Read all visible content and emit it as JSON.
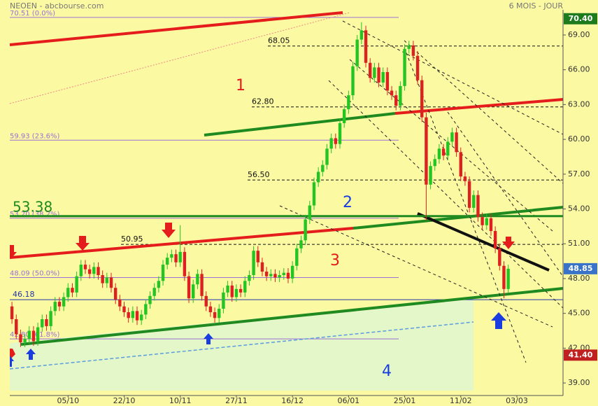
{
  "chart_data": {
    "type": "candlestick",
    "title": "NEOEN - abcbourse.com",
    "subtitle": "6 MOIS - JOUR",
    "open": [
      45.6,
      44.5,
      43.2,
      42.5,
      42.8,
      43.5,
      42.6,
      43.8,
      44.5,
      43.9,
      45.2,
      46,
      45.6,
      46.4,
      47.2,
      46.8,
      48.2,
      49.2,
      48.8,
      48.4,
      49,
      48.3,
      47.6,
      48.1,
      47.2,
      46.2,
      45.6,
      45.1,
      44.6,
      45.2,
      44.4,
      44.9,
      45.8,
      46.5,
      47.2,
      47.8,
      49.2,
      49.8,
      50.1,
      49.4,
      50.3,
      48.2,
      46.3,
      47.5,
      48.4,
      46.5,
      45.6,
      45.1,
      44.6,
      45.4,
      46.8,
      47.4,
      46.4,
      47.1,
      46.8,
      47.8,
      48.3,
      50.4,
      49.4,
      48.6,
      48.2,
      48.4,
      48.1,
      48.3,
      48.5,
      48,
      49.1,
      50.6,
      51.3,
      53.1,
      54.3,
      56.3,
      57.2,
      57.8,
      59.2,
      60.1,
      59.6,
      61.4,
      62.6,
      63.8,
      66.3,
      68.6,
      69.4,
      66.6,
      65.3,
      66.2,
      64.9,
      65.8,
      64.2,
      63.8,
      62.9,
      64.6,
      67.8,
      68.1,
      67.2,
      65.1,
      61.9,
      56.1,
      57.7,
      58.3,
      59.2,
      58.6,
      59.8,
      60.6,
      58.9,
      56.8,
      56.4,
      54.1,
      55.2,
      53.3,
      52.6,
      53.2,
      52.1,
      50.6,
      49.1,
      47.1
    ],
    "high": [
      46.0,
      44.9,
      43.6,
      43.2,
      43.9,
      43.9,
      44.2,
      44.9,
      44.9,
      45.6,
      46.4,
      46.4,
      46.8,
      47.6,
      47.6,
      48.6,
      49.6,
      49.6,
      49.2,
      49.4,
      49.4,
      48.7,
      48.5,
      48.5,
      47.6,
      46.6,
      46.0,
      45.5,
      45.6,
      45.6,
      45.3,
      46.2,
      46.9,
      47.6,
      48.2,
      49.6,
      50.2,
      50.5,
      50.5,
      52.6,
      50.7,
      48.6,
      47.9,
      48.8,
      48.8,
      46.9,
      46.0,
      45.5,
      45.8,
      47.2,
      47.8,
      47.8,
      47.5,
      47.5,
      48.2,
      48.7,
      50.8,
      50.8,
      49.8,
      49.0,
      48.8,
      48.8,
      48.7,
      48.9,
      48.9,
      49.5,
      51.0,
      51.7,
      53.5,
      54.7,
      56.7,
      57.6,
      58.2,
      59.6,
      60.5,
      60.5,
      61.8,
      63.0,
      64.2,
      66.7,
      69.0,
      70.1,
      69.8,
      67.0,
      66.6,
      66.6,
      66.2,
      66.2,
      64.6,
      64.2,
      65.0,
      68.2,
      68.5,
      68.5,
      67.6,
      65.5,
      62.3,
      58.1,
      58.7,
      59.6,
      59.6,
      60.2,
      61.0,
      61.0,
      59.3,
      57.2,
      56.8,
      55.6,
      55.6,
      53.7,
      53.6,
      53.6,
      52.5,
      51.0,
      49.5,
      49.2
    ],
    "low": [
      44.1,
      42.8,
      42.1,
      42.1,
      42.4,
      42.2,
      42.2,
      43.4,
      43.5,
      43.5,
      44.8,
      45.2,
      45.2,
      46.0,
      46.4,
      46.4,
      47.8,
      48.4,
      48.0,
      48.0,
      47.9,
      47.2,
      47.2,
      46.8,
      45.8,
      45.2,
      44.7,
      44.2,
      44.2,
      44.0,
      44.0,
      44.5,
      45.4,
      46.1,
      46.8,
      47.4,
      48.8,
      49.4,
      49.0,
      49.0,
      47.8,
      45.9,
      45.9,
      47.1,
      46.1,
      45.2,
      44.7,
      44.2,
      44.2,
      45.0,
      46.4,
      46.0,
      46.0,
      46.4,
      46.4,
      47.4,
      47.9,
      49.0,
      48.2,
      47.8,
      47.8,
      47.7,
      47.7,
      47.9,
      47.6,
      47.6,
      48.7,
      50.2,
      50.9,
      52.7,
      53.9,
      55.9,
      56.8,
      57.4,
      58.8,
      59.2,
      59.2,
      61.0,
      62.2,
      63.4,
      65.9,
      68.2,
      66.2,
      64.9,
      64.9,
      64.5,
      64.5,
      63.8,
      63.4,
      62.5,
      62.5,
      64.2,
      67.4,
      66.8,
      64.7,
      61.5,
      53.0,
      55.7,
      57.3,
      57.9,
      58.2,
      58.2,
      59.4,
      58.5,
      56.4,
      56.0,
      53.7,
      53.7,
      52.9,
      52.2,
      52.2,
      51.7,
      50.2,
      48.7,
      46.3,
      46.8
    ],
    "close": [
      44.5,
      43.2,
      42.5,
      42.8,
      43.5,
      42.6,
      43.8,
      44.5,
      43.9,
      45.2,
      46,
      45.6,
      46.4,
      47.2,
      46.8,
      48.2,
      49.2,
      48.8,
      48.4,
      49,
      48.3,
      47.6,
      48.1,
      47.2,
      46.2,
      45.6,
      45.1,
      44.6,
      45.2,
      44.4,
      44.9,
      45.8,
      46.5,
      47.2,
      47.8,
      49.2,
      49.8,
      50.1,
      49.4,
      50.3,
      48.2,
      46.3,
      47.5,
      48.4,
      46.5,
      45.6,
      45.1,
      44.6,
      45.4,
      46.8,
      47.4,
      46.4,
      47.1,
      46.8,
      47.8,
      48.3,
      50.4,
      49.4,
      48.6,
      48.2,
      48.4,
      48.1,
      48.3,
      48.5,
      48,
      49.1,
      50.6,
      51.3,
      53.1,
      54.3,
      56.3,
      57.2,
      57.8,
      59.2,
      60.1,
      59.6,
      61.4,
      62.6,
      63.8,
      66.3,
      68.6,
      69.4,
      66.6,
      65.3,
      66.2,
      64.9,
      65.8,
      64.2,
      63.8,
      62.9,
      64.6,
      67.8,
      68.1,
      67.2,
      65.1,
      61.9,
      56.1,
      57.7,
      58.3,
      59.2,
      58.6,
      59.8,
      60.6,
      58.9,
      56.8,
      56.4,
      54.1,
      55.2,
      53.3,
      52.6,
      53.2,
      52.1,
      50.6,
      49.1,
      47.1,
      48.85
    ],
    "up_color": "#22c522",
    "down_color": "#dd2020",
    "xlim": [
      -0.5,
      127.7
    ],
    "xticks": [
      {
        "value": 13,
        "label": "05/10"
      },
      {
        "value": 26,
        "label": "22/10"
      },
      {
        "value": 39,
        "label": "10/11"
      },
      {
        "value": 52,
        "label": "27/11"
      },
      {
        "value": 65,
        "label": "16/12"
      },
      {
        "value": 78,
        "label": "06/01"
      },
      {
        "value": 91,
        "label": "25/01"
      },
      {
        "value": 104,
        "label": "11/02"
      },
      {
        "value": 117,
        "label": "03/03"
      }
    ],
    "ylim": [
      37.92,
      71.17
    ],
    "yticks": [
      {
        "value": 39,
        "label": "39.00"
      },
      {
        "value": 42,
        "label": "42.00"
      },
      {
        "value": 45,
        "label": "45.00"
      },
      {
        "value": 48,
        "label": "48.00"
      },
      {
        "value": 51,
        "label": "51.00"
      },
      {
        "value": 54,
        "label": "54.00"
      },
      {
        "value": 57,
        "label": "57.00"
      },
      {
        "value": 60,
        "label": "60.00"
      },
      {
        "value": 63,
        "label": "63.00"
      },
      {
        "value": 66,
        "label": "66.00"
      },
      {
        "value": 69,
        "label": "69.00"
      }
    ],
    "fibonacci": [
      {
        "value": 70.51,
        "label": "70.51 (0.0%)"
      },
      {
        "value": 59.93,
        "label": "59.93 (23.6%)"
      },
      {
        "value": 53.2,
        "label": "53.20 (38.2%)"
      },
      {
        "value": 48.09,
        "label": "48.09 (50.0%)"
      },
      {
        "value": 42.8,
        "label": "42.80 (61.8%)"
      }
    ],
    "levels": [
      68.05,
      {
        "value": 62.8,
        "label": "62.80"
      },
      {
        "value": 56.5,
        "label": "56.50"
      },
      50.95
    ],
    "support": 46.18,
    "resistance": 53.38,
    "price_labels": [
      {
        "value": 70.4,
        "label": "70.40",
        "color": "#1d7a1d"
      },
      {
        "value": 48.85,
        "label": "48.85",
        "color": "#3a74c9"
      },
      {
        "value": 41.4,
        "label": "41.40",
        "color": "#c02020"
      }
    ],
    "annotations": [
      "1",
      "2",
      "3",
      "4"
    ]
  }
}
